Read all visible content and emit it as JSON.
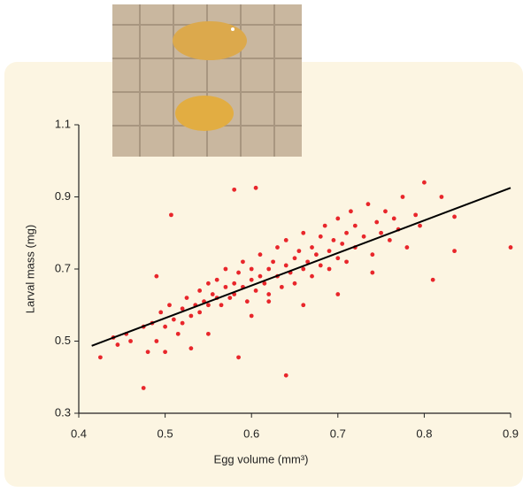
{
  "chart_data": {
    "type": "scatter",
    "x_label": "Egg volume (mm³)",
    "y_label": "Larval mass (mg)",
    "xlim": [
      0.4,
      0.9
    ],
    "xticks": [
      0.4,
      0.5,
      0.6,
      0.7,
      0.8,
      0.9
    ],
    "ylim": [
      0.3,
      1.1
    ],
    "yticks": [
      0.3,
      0.5,
      0.7,
      0.9,
      1.1
    ],
    "trend_line": {
      "color": "#000000",
      "x": [
        0.415,
        0.9
      ],
      "y": [
        0.487,
        0.925
      ]
    },
    "series": [
      {
        "color": "#e8262b",
        "x": [
          0.425,
          0.44,
          0.445,
          0.455,
          0.46,
          0.475,
          0.48,
          0.485,
          0.49,
          0.495,
          0.5,
          0.5,
          0.505,
          0.51,
          0.515,
          0.52,
          0.52,
          0.525,
          0.53,
          0.535,
          0.54,
          0.54,
          0.545,
          0.55,
          0.55,
          0.555,
          0.56,
          0.56,
          0.565,
          0.57,
          0.57,
          0.575,
          0.58,
          0.58,
          0.585,
          0.59,
          0.59,
          0.595,
          0.6,
          0.6,
          0.605,
          0.61,
          0.61,
          0.615,
          0.62,
          0.62,
          0.625,
          0.63,
          0.63,
          0.635,
          0.64,
          0.64,
          0.645,
          0.65,
          0.65,
          0.655,
          0.66,
          0.66,
          0.665,
          0.67,
          0.67,
          0.675,
          0.68,
          0.68,
          0.685,
          0.69,
          0.69,
          0.695,
          0.7,
          0.7,
          0.705,
          0.71,
          0.71,
          0.715,
          0.72,
          0.72,
          0.73,
          0.735,
          0.74,
          0.745,
          0.75,
          0.755,
          0.76,
          0.765,
          0.77,
          0.775,
          0.78,
          0.79,
          0.795,
          0.58,
          0.605,
          0.507,
          0.9,
          0.475,
          0.64,
          0.585,
          0.8,
          0.81,
          0.835,
          0.835,
          0.82,
          0.49,
          0.53,
          0.6,
          0.66,
          0.7,
          0.74,
          0.55,
          0.62
        ],
        "values": [
          0.455,
          0.51,
          0.49,
          0.52,
          0.5,
          0.54,
          0.47,
          0.55,
          0.5,
          0.58,
          0.54,
          0.47,
          0.6,
          0.56,
          0.52,
          0.59,
          0.55,
          0.62,
          0.57,
          0.6,
          0.64,
          0.58,
          0.61,
          0.66,
          0.6,
          0.63,
          0.62,
          0.67,
          0.6,
          0.65,
          0.7,
          0.62,
          0.66,
          0.63,
          0.69,
          0.65,
          0.72,
          0.61,
          0.67,
          0.7,
          0.64,
          0.68,
          0.74,
          0.66,
          0.7,
          0.63,
          0.72,
          0.68,
          0.76,
          0.65,
          0.71,
          0.78,
          0.69,
          0.73,
          0.66,
          0.75,
          0.7,
          0.8,
          0.72,
          0.76,
          0.68,
          0.74,
          0.79,
          0.71,
          0.82,
          0.75,
          0.7,
          0.78,
          0.73,
          0.84,
          0.77,
          0.72,
          0.8,
          0.86,
          0.76,
          0.82,
          0.79,
          0.88,
          0.74,
          0.83,
          0.8,
          0.86,
          0.78,
          0.84,
          0.81,
          0.9,
          0.76,
          0.85,
          0.82,
          0.92,
          0.925,
          0.85,
          0.76,
          0.37,
          0.405,
          0.455,
          0.94,
          0.67,
          0.75,
          0.845,
          0.9,
          0.68,
          0.48,
          0.57,
          0.6,
          0.63,
          0.69,
          0.52,
          0.61
        ]
      }
    ]
  }
}
